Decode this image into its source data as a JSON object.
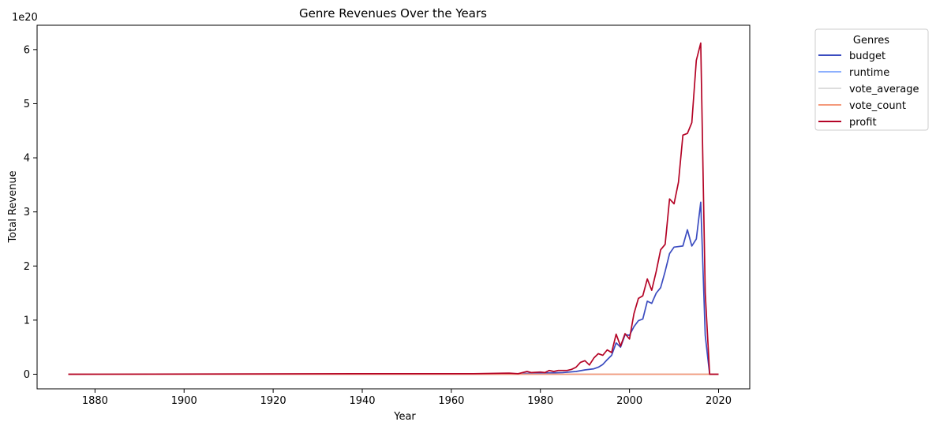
{
  "chart_data": {
    "type": "line",
    "title": "Genre Revenues Over the Years",
    "xlabel": "Year",
    "ylabel": "Total Revenue",
    "y_offset_label": "1e20",
    "xlim": [
      1867,
      2027
    ],
    "ylim": [
      -0.27,
      6.45
    ],
    "y_scale_multiplier": "1e20",
    "x_ticks": [
      1880,
      1900,
      1920,
      1940,
      1960,
      1980,
      2000,
      2020
    ],
    "x_tick_labels": [
      "1880",
      "1900",
      "1920",
      "1940",
      "1960",
      "1980",
      "2000",
      "2020"
    ],
    "y_ticks": [
      0,
      1,
      2,
      3,
      4,
      5,
      6
    ],
    "y_tick_labels": [
      "0",
      "1",
      "2",
      "3",
      "4",
      "5",
      "6"
    ],
    "grid": false,
    "legend": {
      "title": "Genres",
      "position": "outside-top-right",
      "entries": [
        "budget",
        "runtime",
        "vote_average",
        "vote_count",
        "profit"
      ]
    },
    "series": [
      {
        "name": "budget",
        "color": "#3b4cc0",
        "points": [
          [
            1874,
            0
          ],
          [
            1970,
            0
          ],
          [
            1980,
            0.02
          ],
          [
            1985,
            0.03
          ],
          [
            1988,
            0.05
          ],
          [
            1990,
            0.08
          ],
          [
            1992,
            0.1
          ],
          [
            1993,
            0.13
          ],
          [
            1994,
            0.18
          ],
          [
            1995,
            0.27
          ],
          [
            1996,
            0.35
          ],
          [
            1997,
            0.58
          ],
          [
            1998,
            0.5
          ],
          [
            1999,
            0.73
          ],
          [
            2000,
            0.72
          ],
          [
            2001,
            0.88
          ],
          [
            2002,
            0.99
          ],
          [
            2003,
            1.02
          ],
          [
            2004,
            1.35
          ],
          [
            2005,
            1.31
          ],
          [
            2006,
            1.5
          ],
          [
            2007,
            1.6
          ],
          [
            2008,
            1.9
          ],
          [
            2009,
            2.23
          ],
          [
            2010,
            2.35
          ],
          [
            2012,
            2.37
          ],
          [
            2013,
            2.67
          ],
          [
            2014,
            2.37
          ],
          [
            2015,
            2.5
          ],
          [
            2016,
            3.18
          ],
          [
            2017,
            0.72
          ],
          [
            2018,
            0
          ],
          [
            2020,
            0
          ]
        ]
      },
      {
        "name": "runtime",
        "color": "#8db0fe",
        "points": [
          [
            1874,
            0
          ],
          [
            2020,
            0
          ]
        ]
      },
      {
        "name": "vote_average",
        "color": "#dddddd",
        "points": [
          [
            1874,
            0
          ],
          [
            2020,
            0
          ]
        ]
      },
      {
        "name": "vote_count",
        "color": "#f49a7b",
        "points": [
          [
            1874,
            0
          ],
          [
            2020,
            0
          ]
        ]
      },
      {
        "name": "profit",
        "color": "#b40426",
        "points": [
          [
            1874,
            0
          ],
          [
            1938,
            0.01
          ],
          [
            1951,
            0.01
          ],
          [
            1965,
            0.01
          ],
          [
            1973,
            0.02
          ],
          [
            1975,
            0.01
          ],
          [
            1977,
            0.05
          ],
          [
            1978,
            0.03
          ],
          [
            1980,
            0.04
          ],
          [
            1981,
            0.03
          ],
          [
            1982,
            0.07
          ],
          [
            1983,
            0.05
          ],
          [
            1984,
            0.07
          ],
          [
            1986,
            0.07
          ],
          [
            1987,
            0.09
          ],
          [
            1988,
            0.13
          ],
          [
            1989,
            0.22
          ],
          [
            1990,
            0.25
          ],
          [
            1991,
            0.17
          ],
          [
            1992,
            0.3
          ],
          [
            1993,
            0.38
          ],
          [
            1994,
            0.35
          ],
          [
            1995,
            0.45
          ],
          [
            1996,
            0.4
          ],
          [
            1997,
            0.74
          ],
          [
            1998,
            0.52
          ],
          [
            1999,
            0.75
          ],
          [
            2000,
            0.65
          ],
          [
            2001,
            1.12
          ],
          [
            2002,
            1.4
          ],
          [
            2003,
            1.45
          ],
          [
            2004,
            1.76
          ],
          [
            2005,
            1.55
          ],
          [
            2006,
            1.9
          ],
          [
            2007,
            2.3
          ],
          [
            2008,
            2.4
          ],
          [
            2009,
            3.24
          ],
          [
            2010,
            3.15
          ],
          [
            2011,
            3.55
          ],
          [
            2012,
            4.42
          ],
          [
            2013,
            4.45
          ],
          [
            2014,
            4.65
          ],
          [
            2015,
            5.8
          ],
          [
            2016,
            6.12
          ],
          [
            2017,
            1.5
          ],
          [
            2018,
            0
          ],
          [
            2020,
            0
          ]
        ]
      }
    ]
  }
}
